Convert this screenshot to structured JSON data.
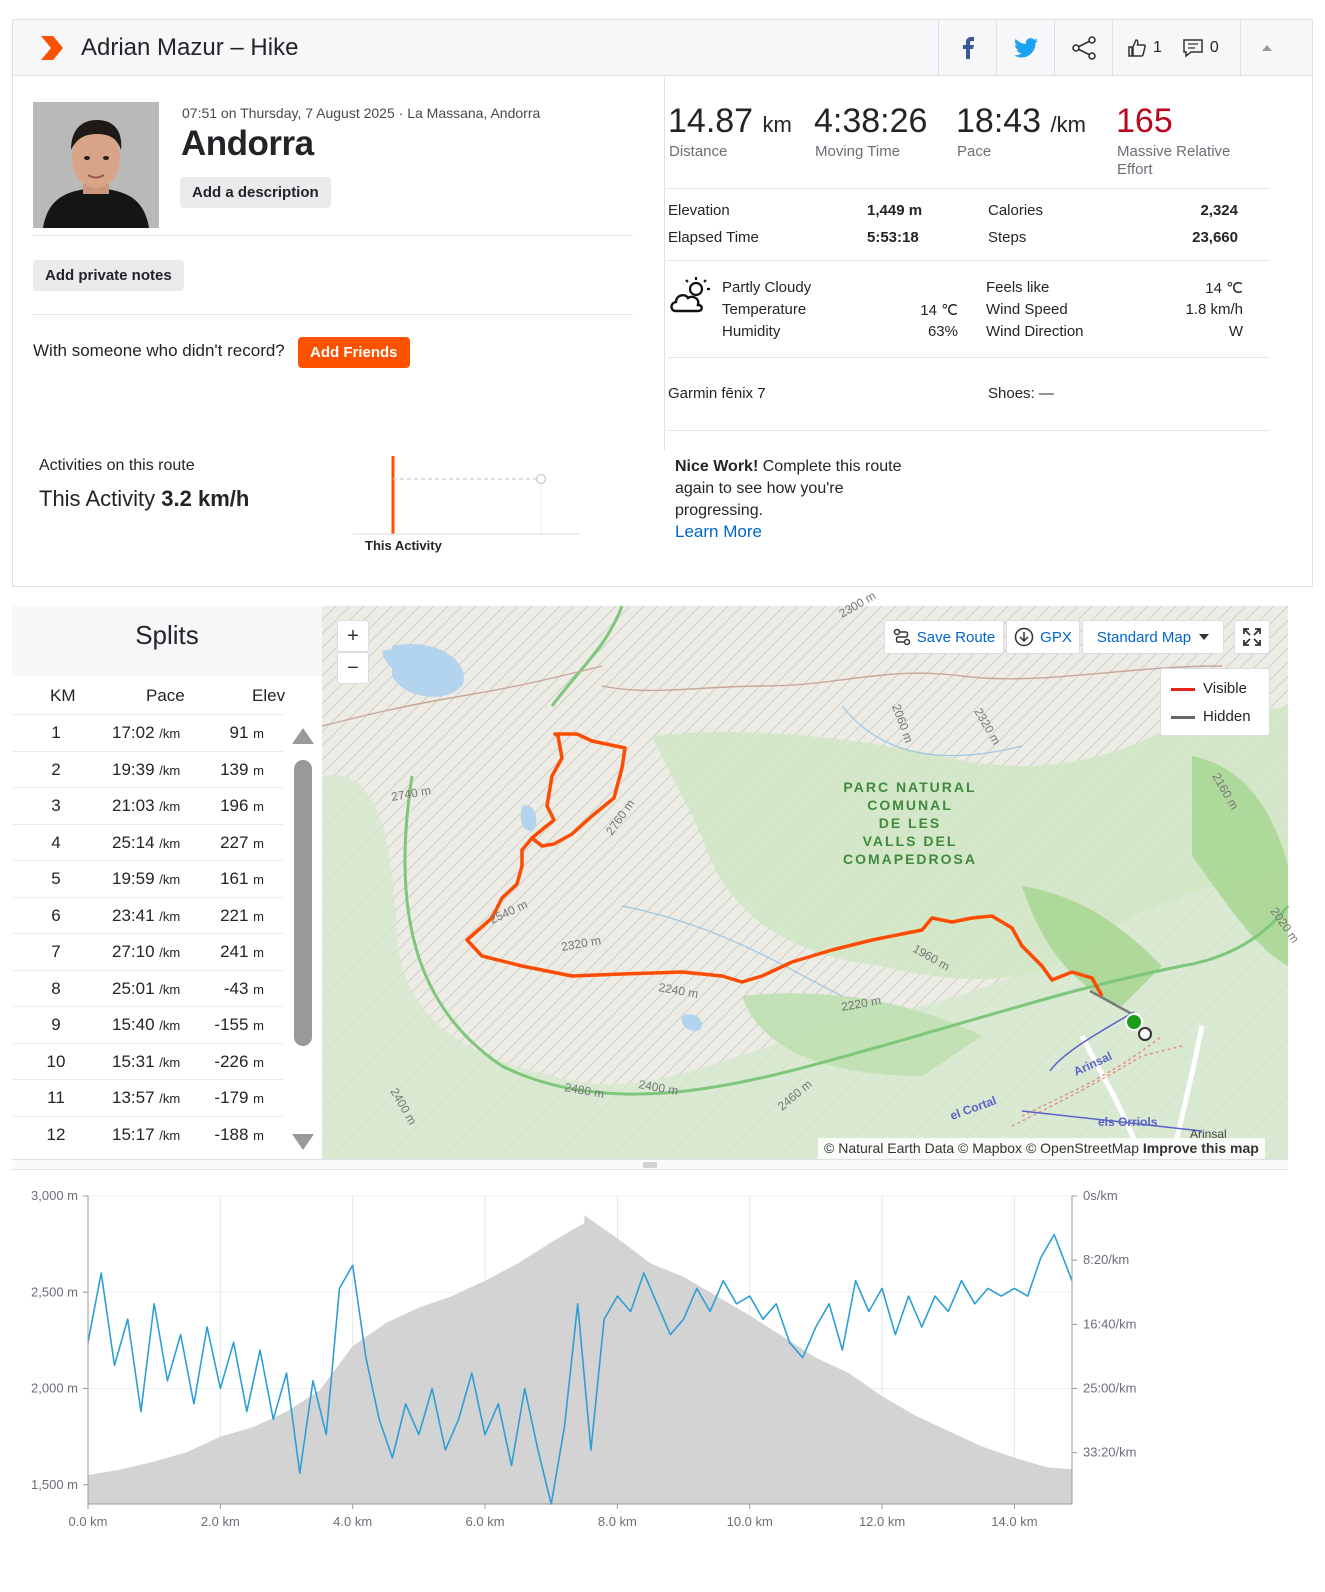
{
  "header": {
    "title": "Adrian Mazur – Hike",
    "kudos": "1",
    "comments": "0"
  },
  "activity": {
    "meta": "07:51 on Thursday, 7 August 2025 · La Massana, Andorra",
    "name": "Andorra",
    "add_description": "Add a description",
    "add_notes": "Add private notes",
    "friends_prompt": "With someone who didn't record?",
    "add_friends": "Add Friends"
  },
  "stats": {
    "distance_val": "14.87",
    "distance_unit": "km",
    "distance_lbl": "Distance",
    "moving_val": "4:38:26",
    "moving_lbl": "Moving Time",
    "pace_val": "18:43",
    "pace_unit": "/km",
    "pace_lbl": "Pace",
    "effort_val": "165",
    "effort_lbl1": "Massive Relative",
    "effort_lbl2": "Effort",
    "elevation_lbl": "Elevation",
    "elevation_val": "1,449 m",
    "elapsed_lbl": "Elapsed Time",
    "elapsed_val": "5:53:18",
    "calories_lbl": "Calories",
    "calories_val": "2,324",
    "steps_lbl": "Steps",
    "steps_val": "23,660"
  },
  "weather": {
    "condition": "Partly Cloudy",
    "temp_lbl": "Temperature",
    "temp_val": "14 ℃",
    "hum_lbl": "Humidity",
    "hum_val": "63%",
    "feels_lbl": "Feels like",
    "feels_val": "14 ℃",
    "wind_lbl": "Wind Speed",
    "wind_val": "1.8 km/h",
    "dir_lbl": "Wind Direction",
    "dir_val": "W"
  },
  "gear": {
    "device": "Garmin fēnix 7",
    "shoes": "Shoes: —"
  },
  "route": {
    "heading": "Activities on this route",
    "this_activity": "This Activity",
    "speed": "3.2 km/h",
    "axis_label": "This Activity",
    "nice": "Nice Work!",
    "nice_text": "Complete this route again to see how you're progressing.",
    "learn_more": "Learn More"
  },
  "splits": {
    "title": "Splits",
    "headers": [
      "KM",
      "Pace",
      "Elev"
    ],
    "rows": [
      {
        "km": "1",
        "pace": "17:02",
        "unit": "/km",
        "elev": "91",
        "eunit": "m"
      },
      {
        "km": "2",
        "pace": "19:39",
        "unit": "/km",
        "elev": "139",
        "eunit": "m"
      },
      {
        "km": "3",
        "pace": "21:03",
        "unit": "/km",
        "elev": "196",
        "eunit": "m"
      },
      {
        "km": "4",
        "pace": "25:14",
        "unit": "/km",
        "elev": "227",
        "eunit": "m"
      },
      {
        "km": "5",
        "pace": "19:59",
        "unit": "/km",
        "elev": "161",
        "eunit": "m"
      },
      {
        "km": "6",
        "pace": "23:41",
        "unit": "/km",
        "elev": "221",
        "eunit": "m"
      },
      {
        "km": "7",
        "pace": "27:10",
        "unit": "/km",
        "elev": "241",
        "eunit": "m"
      },
      {
        "km": "8",
        "pace": "25:01",
        "unit": "/km",
        "elev": "-43",
        "eunit": "m"
      },
      {
        "km": "9",
        "pace": "15:40",
        "unit": "/km",
        "elev": "-155",
        "eunit": "m"
      },
      {
        "km": "10",
        "pace": "15:31",
        "unit": "/km",
        "elev": "-226",
        "eunit": "m"
      },
      {
        "km": "11",
        "pace": "13:57",
        "unit": "/km",
        "elev": "-179",
        "eunit": "m"
      },
      {
        "km": "12",
        "pace": "15:17",
        "unit": "/km",
        "elev": "-188",
        "eunit": "m"
      }
    ]
  },
  "map": {
    "save_route": "Save Route",
    "gpx": "GPX",
    "map_type": "Standard Map",
    "legend_visible": "Visible",
    "legend_hidden": "Hidden",
    "park": [
      "PARC NATURAL",
      "COMUNAL",
      "DE LES",
      "VALLS DEL",
      "COMAPEDROSA"
    ],
    "contours": [
      "2740 m",
      "2760 m",
      "2540 m",
      "2320 m",
      "2240 m",
      "1960 m",
      "2220 m",
      "2480 m",
      "2400 m",
      "2460 m",
      "2400 m",
      "2060 m",
      "2320 m",
      "2160 m",
      "2020 m",
      "2300 m"
    ],
    "places": [
      "Arinsal",
      "els Orriols",
      "Arinsal",
      "el Cortal"
    ],
    "attribution": "© Natural Earth Data © Mapbox © OpenStreetMap",
    "improve": "Improve this map"
  },
  "chart_data": {
    "type": "area",
    "x_ticks": [
      "0.0 km",
      "2.0 km",
      "4.0 km",
      "6.0 km",
      "8.0 km",
      "10.0 km",
      "12.0 km",
      "14.0 km"
    ],
    "y_left_ticks": [
      "3,000 m",
      "2,500 m",
      "2,000 m",
      "1,500 m"
    ],
    "y_right_ticks": [
      "0s/km",
      "8:20/km",
      "16:40/km",
      "25:00/km",
      "33:20/km"
    ],
    "xlim": [
      0,
      14.87
    ],
    "ylim": [
      1400,
      3000
    ],
    "elevation_series": {
      "x": [
        0,
        0.5,
        1,
        1.5,
        2,
        2.5,
        3,
        3.5,
        4,
        4.5,
        5,
        5.5,
        6,
        6.5,
        7,
        7.5,
        7.5,
        8,
        8.5,
        9,
        9.5,
        10,
        10.5,
        11,
        11.5,
        12,
        12.5,
        13,
        13.5,
        14,
        14.5,
        14.87
      ],
      "y": [
        1550,
        1580,
        1620,
        1670,
        1750,
        1800,
        1880,
        1990,
        2220,
        2340,
        2420,
        2480,
        2560,
        2650,
        2760,
        2860,
        2900,
        2780,
        2650,
        2580,
        2480,
        2380,
        2270,
        2160,
        2080,
        1960,
        1860,
        1780,
        1700,
        1640,
        1590,
        1580
      ]
    },
    "pace_series": {
      "x": [
        0,
        0.2,
        0.4,
        0.6,
        0.8,
        1,
        1.2,
        1.4,
        1.6,
        1.8,
        2,
        2.2,
        2.4,
        2.6,
        2.8,
        3,
        3.2,
        3.4,
        3.6,
        3.8,
        4,
        4.2,
        4.4,
        4.6,
        4.8,
        5,
        5.2,
        5.4,
        5.6,
        5.8,
        6,
        6.2,
        6.4,
        6.6,
        6.8,
        7,
        7.2,
        7.4,
        7.6,
        7.8,
        8,
        8.2,
        8.4,
        8.6,
        8.8,
        9,
        9.2,
        9.4,
        9.6,
        9.8,
        10,
        10.2,
        10.4,
        10.6,
        10.8,
        11,
        11.2,
        11.4,
        11.6,
        11.8,
        12,
        12.2,
        12.4,
        12.6,
        12.8,
        13,
        13.2,
        13.4,
        13.6,
        13.8,
        14,
        14.2,
        14.4,
        14.6,
        14.87
      ],
      "y": [
        19,
        10,
        22,
        16,
        28,
        14,
        24,
        18,
        27,
        17,
        25,
        19,
        28,
        20,
        29,
        23,
        36,
        24,
        31,
        12,
        9,
        21,
        29,
        34,
        27,
        31,
        25,
        33,
        29,
        23,
        31,
        27,
        35,
        25,
        33,
        40,
        30,
        14,
        33,
        16,
        13,
        15,
        10,
        14,
        18,
        16,
        12,
        15,
        11,
        14,
        13,
        16,
        14,
        19,
        21,
        17,
        14,
        20,
        11,
        15,
        12,
        18,
        13,
        17,
        13,
        15,
        11,
        14,
        12,
        13,
        12,
        13,
        8,
        5,
        11
      ]
    }
  }
}
